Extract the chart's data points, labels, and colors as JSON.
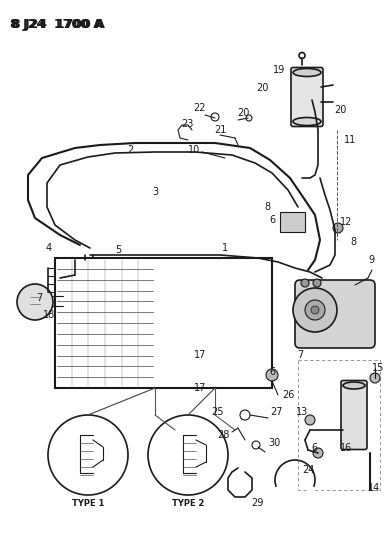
{
  "bg_color": "#ffffff",
  "line_color": "#1a1a1a",
  "dpi": 100,
  "fig_width": 3.92,
  "fig_height": 5.33,
  "title": "8 J24  1700 A"
}
